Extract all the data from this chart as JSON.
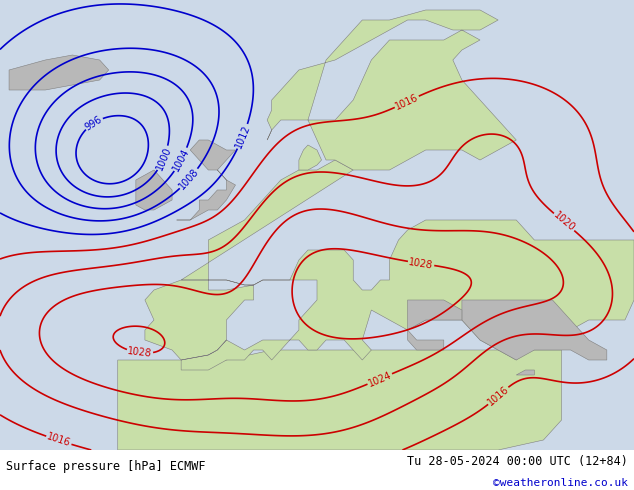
{
  "title_left": "Surface pressure [hPa] ECMWF",
  "title_right": "Tu 28-05-2024 00:00 UTC (12+84)",
  "credit": "©weatheronline.co.uk",
  "background_ocean": "#ccd9e8",
  "background_land_green": "#c8dfa8",
  "background_land_gray": "#b8b8b8",
  "isobar_color_black": "#000000",
  "isobar_color_blue": "#0000cc",
  "isobar_color_red": "#cc0000",
  "bottom_bar_color": "#e0e0e0",
  "credit_color": "#0000cc",
  "figsize": [
    6.34,
    4.9
  ],
  "dpi": 100
}
